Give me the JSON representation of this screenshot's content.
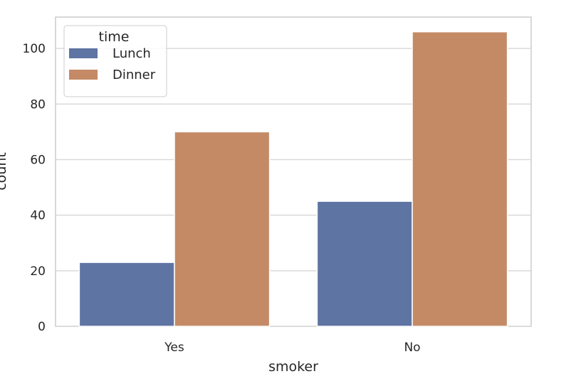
{
  "chart_data": {
    "type": "bar",
    "categories": [
      "Yes",
      "No"
    ],
    "series": [
      {
        "name": "Lunch",
        "values": [
          23,
          45
        ]
      },
      {
        "name": "Dinner",
        "values": [
          70,
          106
        ]
      }
    ],
    "xlabel": "smoker",
    "ylabel": "count",
    "ylim": [
      0,
      111.3
    ],
    "yticks": [
      0,
      20,
      40,
      60,
      80,
      100
    ],
    "grid": true,
    "legend": {
      "title": "time",
      "placement": "top-left"
    },
    "colors": {
      "Lunch": "#5e74a3",
      "Dinner": "#c48a66",
      "grid": "#d9d9d9",
      "axes_edge": "#cccccc"
    }
  }
}
